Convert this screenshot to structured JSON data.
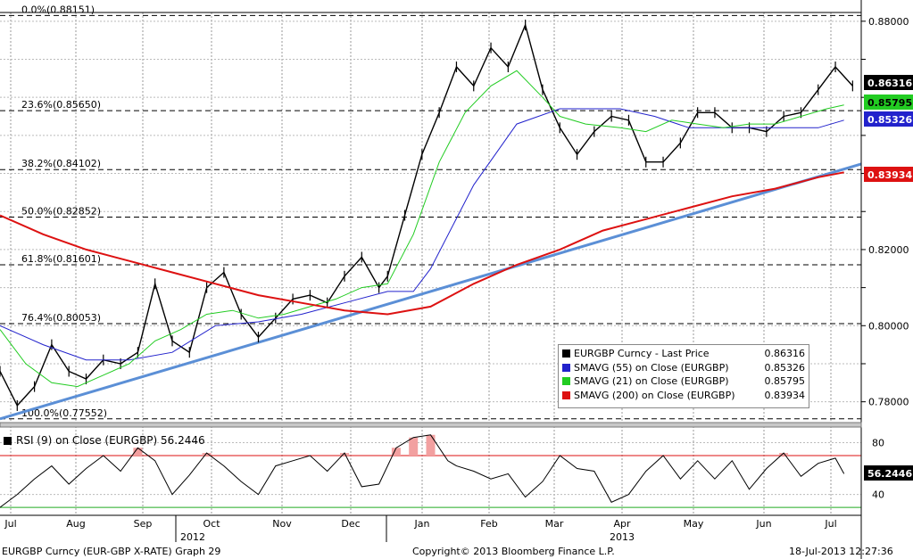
{
  "chart_data": [
    {
      "type": "line",
      "title": "",
      "xlabel": "",
      "ylabel": "",
      "ylim": [
        0.775,
        0.8823
      ],
      "y_ticks": [
        0.78,
        0.79,
        0.8,
        0.81,
        0.82,
        0.83,
        0.84,
        0.85,
        0.86,
        0.87,
        0.88
      ],
      "y_tick_labels": [
        "0.78000",
        "",
        "0.80000",
        "",
        "0.82000",
        "",
        "",
        "",
        "",
        "",
        "0.88000"
      ],
      "x_ticks": [
        "Jul",
        "Aug",
        "Sep",
        "Oct",
        "Nov",
        "Dec",
        "Jan",
        "Feb",
        "Mar",
        "Apr",
        "May",
        "Jun",
        "Jul"
      ],
      "x_year_labels": [
        "2012",
        "2013"
      ],
      "grid": true,
      "legend_position": "bottom-right",
      "fib_levels": [
        {
          "label": "0.0%(0.88151)",
          "value": 0.88151
        },
        {
          "label": "23.6%(0.85650)",
          "value": 0.8565
        },
        {
          "label": "38.2%(0.84102)",
          "value": 0.84102
        },
        {
          "label": "50.0%(0.82852)",
          "value": 0.82852
        },
        {
          "label": "61.8%(0.81601)",
          "value": 0.81601
        },
        {
          "label": "76.4%(0.80053)",
          "value": 0.80053
        },
        {
          "label": "100.0%(0.77552)",
          "value": 0.77552
        }
      ],
      "trendline": {
        "color": "#5b8fd6",
        "start": [
          0.0,
          0.7755
        ],
        "end": [
          1.0,
          0.8425
        ]
      },
      "series": [
        {
          "name": "EURGBP Curncy - Last Price",
          "last": "0.86316",
          "color": "#000000",
          "x": [
            0.0,
            0.02,
            0.04,
            0.06,
            0.08,
            0.1,
            0.12,
            0.14,
            0.16,
            0.18,
            0.2,
            0.22,
            0.24,
            0.26,
            0.28,
            0.3,
            0.32,
            0.34,
            0.36,
            0.38,
            0.4,
            0.42,
            0.44,
            0.45,
            0.47,
            0.49,
            0.51,
            0.53,
            0.55,
            0.57,
            0.59,
            0.61,
            0.63,
            0.65,
            0.67,
            0.69,
            0.71,
            0.73,
            0.75,
            0.77,
            0.79,
            0.81,
            0.83,
            0.85,
            0.87,
            0.89,
            0.91,
            0.93,
            0.95,
            0.97,
            0.99
          ],
          "values": [
            0.788,
            0.779,
            0.784,
            0.795,
            0.788,
            0.786,
            0.791,
            0.79,
            0.793,
            0.811,
            0.796,
            0.793,
            0.81,
            0.814,
            0.803,
            0.797,
            0.802,
            0.807,
            0.808,
            0.806,
            0.813,
            0.818,
            0.81,
            0.813,
            0.829,
            0.845,
            0.856,
            0.868,
            0.863,
            0.873,
            0.868,
            0.879,
            0.862,
            0.852,
            0.845,
            0.851,
            0.855,
            0.854,
            0.843,
            0.843,
            0.848,
            0.856,
            0.856,
            0.852,
            0.852,
            0.851,
            0.855,
            0.856,
            0.862,
            0.868,
            0.863
          ]
        },
        {
          "name": "SMAVG (55) on Close (EURGBP)",
          "last": "0.85326",
          "color": "#2222cc",
          "x": [
            0.0,
            0.05,
            0.1,
            0.15,
            0.2,
            0.25,
            0.3,
            0.35,
            0.4,
            0.45,
            0.48,
            0.5,
            0.55,
            0.6,
            0.65,
            0.68,
            0.72,
            0.76,
            0.8,
            0.85,
            0.9,
            0.95,
            0.98
          ],
          "values": [
            0.8,
            0.795,
            0.791,
            0.791,
            0.793,
            0.8,
            0.801,
            0.803,
            0.806,
            0.809,
            0.809,
            0.815,
            0.837,
            0.853,
            0.857,
            0.857,
            0.857,
            0.855,
            0.852,
            0.852,
            0.852,
            0.852,
            0.854
          ]
        },
        {
          "name": "SMAVG (21) on Close (EURGBP)",
          "last": "0.85795",
          "color": "#22cc22",
          "x": [
            0.0,
            0.03,
            0.06,
            0.09,
            0.12,
            0.15,
            0.18,
            0.21,
            0.24,
            0.27,
            0.3,
            0.33,
            0.36,
            0.39,
            0.42,
            0.45,
            0.48,
            0.51,
            0.54,
            0.57,
            0.6,
            0.63,
            0.65,
            0.68,
            0.72,
            0.75,
            0.78,
            0.81,
            0.84,
            0.87,
            0.9,
            0.93,
            0.96,
            0.98
          ],
          "values": [
            0.799,
            0.79,
            0.785,
            0.784,
            0.787,
            0.79,
            0.796,
            0.799,
            0.803,
            0.804,
            0.802,
            0.803,
            0.805,
            0.807,
            0.81,
            0.811,
            0.824,
            0.843,
            0.856,
            0.863,
            0.867,
            0.86,
            0.855,
            0.853,
            0.852,
            0.851,
            0.854,
            0.853,
            0.852,
            0.853,
            0.853,
            0.855,
            0.857,
            0.858
          ]
        },
        {
          "name": "SMAVG (200) on Close (EURGBP)",
          "last": "0.83934",
          "color": "#dd1111",
          "x": [
            0.0,
            0.05,
            0.1,
            0.15,
            0.2,
            0.25,
            0.3,
            0.35,
            0.4,
            0.45,
            0.5,
            0.55,
            0.6,
            0.65,
            0.7,
            0.75,
            0.8,
            0.85,
            0.9,
            0.95,
            0.98
          ],
          "values": [
            0.829,
            0.824,
            0.82,
            0.817,
            0.814,
            0.811,
            0.808,
            0.806,
            0.804,
            0.803,
            0.805,
            0.811,
            0.816,
            0.82,
            0.825,
            0.828,
            0.831,
            0.834,
            0.836,
            0.839,
            0.8403
          ]
        }
      ]
    },
    {
      "type": "line",
      "title": "",
      "legend_label": "RSI (9) on Close (EURGBP) 56.2446",
      "last": "56.2446",
      "ylim": [
        28,
        90
      ],
      "y_ticks": [
        40,
        80
      ],
      "y_tick_labels": [
        "40",
        "80"
      ],
      "upper_band": 70,
      "lower_band": 30,
      "series": [
        {
          "name": "RSI (9) on Close (EURGBP)",
          "color": "#000000",
          "x": [
            0.0,
            0.02,
            0.04,
            0.06,
            0.08,
            0.1,
            0.12,
            0.14,
            0.16,
            0.18,
            0.2,
            0.22,
            0.24,
            0.26,
            0.28,
            0.3,
            0.32,
            0.34,
            0.36,
            0.38,
            0.4,
            0.42,
            0.44,
            0.46,
            0.48,
            0.5,
            0.52,
            0.53,
            0.55,
            0.57,
            0.59,
            0.61,
            0.63,
            0.65,
            0.67,
            0.69,
            0.71,
            0.73,
            0.75,
            0.77,
            0.79,
            0.81,
            0.83,
            0.85,
            0.87,
            0.89,
            0.91,
            0.93,
            0.95,
            0.97,
            0.98
          ],
          "values": [
            30,
            40,
            52,
            62,
            48,
            60,
            70,
            58,
            76,
            66,
            40,
            55,
            72,
            62,
            50,
            40,
            62,
            66,
            70,
            58,
            72,
            46,
            48,
            76,
            84,
            86,
            66,
            62,
            58,
            52,
            56,
            38,
            50,
            70,
            60,
            58,
            34,
            40,
            58,
            70,
            52,
            66,
            52,
            66,
            44,
            60,
            72,
            54,
            64,
            68,
            56
          ]
        }
      ]
    }
  ],
  "footer": {
    "left": "EURGBP Curncy (EUR-GBP X-RATE) Graph 29",
    "middle": "Copyright© 2013 Bloomberg Finance L.P.",
    "right": "18-Jul-2013 12:27:36"
  }
}
